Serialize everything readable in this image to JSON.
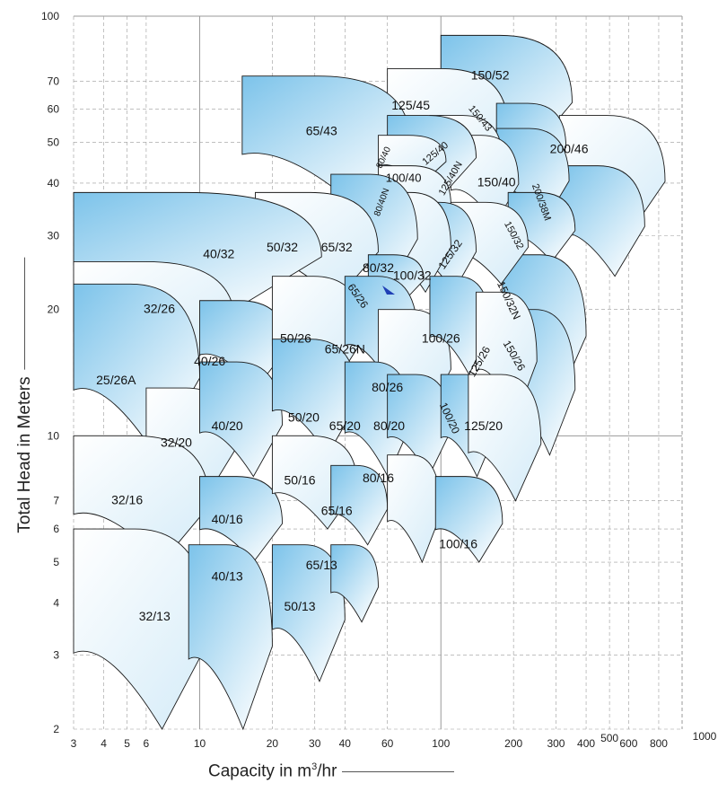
{
  "colors": {
    "fill_dark": "#7cc3ea",
    "fill_light": "#ffffff",
    "outline": "#1a1a1a",
    "grid": "#9a9a9a",
    "accent_arrow": "#1f3fb5"
  },
  "chart_data": {
    "type": "area",
    "xlabel_text": "Capacity in m",
    "xlabel_sup": "3",
    "xlabel_tail": "/hr",
    "ylabel": "Total Head in Meters",
    "x_scale": "log",
    "y_scale": "log",
    "xlim": [
      3,
      1000
    ],
    "ylim": [
      2,
      100
    ],
    "grid": true,
    "x_ticks": [
      3,
      4,
      5,
      6,
      10,
      20,
      30,
      40,
      60,
      100,
      200,
      300,
      400,
      500,
      600,
      800,
      1000
    ],
    "x_tick_labels": [
      "3",
      "4",
      "5",
      "6",
      "10",
      "20",
      "30",
      "40",
      "60",
      "100",
      "200",
      "300",
      "400",
      "500",
      "600",
      "800",
      "1000"
    ],
    "y_ticks": [
      2,
      3,
      4,
      5,
      6,
      7,
      10,
      20,
      30,
      40,
      50,
      60,
      70,
      100
    ],
    "y_tick_labels": [
      "2",
      "3",
      "4",
      "5",
      "6",
      "7",
      "10",
      "20",
      "30",
      "40",
      "50",
      "60",
      "70",
      "100"
    ],
    "pump_ranges": [
      {
        "model": "150/52",
        "q_min": 100,
        "q_max": 350,
        "h_min": 46,
        "h_max": 90,
        "shade": 0.9
      },
      {
        "model": "200/46",
        "q_min": 310,
        "q_max": 850,
        "h_min": 30,
        "h_max": 58,
        "shade": 0.2
      },
      {
        "model": "125/45",
        "q_min": 60,
        "q_max": 190,
        "h_min": 41,
        "h_max": 75,
        "shade": 0.15
      },
      {
        "model": "150/43",
        "q_min": 170,
        "q_max": 330,
        "h_min": 40,
        "h_max": 62,
        "shade": 0.6
      },
      {
        "model": "200/38M",
        "q_min": 310,
        "q_max": 700,
        "h_min": 24,
        "h_max": 44,
        "shade": 0.5
      },
      {
        "model": "150/40",
        "q_min": 170,
        "q_max": 340,
        "h_min": 32,
        "h_max": 54,
        "shade": 0.8
      },
      {
        "model": "65/43",
        "q_min": 15,
        "q_max": 75,
        "h_min": 36,
        "h_max": 72,
        "shade": 0.85
      },
      {
        "model": "125/40",
        "q_min": 90,
        "q_max": 180,
        "h_min": 37,
        "h_max": 58,
        "shade": 0.1
      },
      {
        "model": "125/40N",
        "q_min": 110,
        "q_max": 210,
        "h_min": 32,
        "h_max": 52,
        "shade": 0.15
      },
      {
        "model": "100/40",
        "q_min": 60,
        "q_max": 140,
        "h_min": 38,
        "h_max": 58,
        "shade": 0.7
      },
      {
        "model": "80/40",
        "q_min": 55,
        "q_max": 105,
        "h_min": 40,
        "h_max": 52,
        "shade": 0.2
      },
      {
        "model": "80/40N",
        "q_min": 55,
        "q_max": 110,
        "h_min": 30,
        "h_max": 44,
        "shade": 0.2
      },
      {
        "model": "150/32",
        "q_min": 190,
        "q_max": 360,
        "h_min": 26,
        "h_max": 38,
        "shade": 0.85
      },
      {
        "model": "150/32N",
        "q_min": 180,
        "q_max": 400,
        "h_min": 12,
        "h_max": 27,
        "shade": 0.9
      },
      {
        "model": "150/26",
        "q_min": 180,
        "q_max": 360,
        "h_min": 9,
        "h_max": 20,
        "shade": 0.6
      },
      {
        "model": "125/32",
        "q_min": 110,
        "q_max": 230,
        "h_min": 23,
        "h_max": 36,
        "shade": 0.15
      },
      {
        "model": "100/32",
        "q_min": 75,
        "q_max": 140,
        "h_min": 22,
        "h_max": 36,
        "shade": 0.8
      },
      {
        "model": "80/32",
        "q_min": 55,
        "q_max": 110,
        "h_min": 22,
        "h_max": 38,
        "shade": 0.1
      },
      {
        "model": "65/32",
        "q_min": 35,
        "q_max": 80,
        "h_min": 22,
        "h_max": 42,
        "shade": 0.85
      },
      {
        "model": "50/32",
        "q_min": 17,
        "q_max": 55,
        "h_min": 21,
        "h_max": 38,
        "shade": 0.15
      },
      {
        "model": "40/32",
        "q_min": 3,
        "q_max": 32,
        "h_min": 20,
        "h_max": 38,
        "shade": 0.85
      },
      {
        "model": "32/26",
        "q_min": 3,
        "q_max": 14,
        "h_min": 14,
        "h_max": 26,
        "shade": 0.1
      },
      {
        "model": "25/26A",
        "q_min": 3,
        "q_max": 10,
        "h_min": 9,
        "h_max": 23,
        "shade": 0.85
      },
      {
        "model": "40/26",
        "q_min": 10,
        "q_max": 23,
        "h_min": 13,
        "h_max": 21,
        "shade": 0.7
      },
      {
        "model": "50/26",
        "q_min": 20,
        "q_max": 48,
        "h_min": 13,
        "h_max": 24,
        "shade": 0.15
      },
      {
        "model": "65/26",
        "q_min": 50,
        "q_max": 85,
        "h_min": 21,
        "h_max": 27,
        "shade": 0.8
      },
      {
        "model": "65/26N",
        "q_min": 40,
        "q_max": 80,
        "h_min": 13,
        "h_max": 24,
        "shade": 0.8
      },
      {
        "model": "80/26",
        "q_min": 55,
        "q_max": 110,
        "h_min": 11,
        "h_max": 20,
        "shade": 0.15
      },
      {
        "model": "100/26",
        "q_min": 90,
        "q_max": 160,
        "h_min": 14,
        "h_max": 24,
        "shade": 0.8
      },
      {
        "model": "125/26",
        "q_min": 140,
        "q_max": 250,
        "h_min": 11,
        "h_max": 22,
        "shade": 0.15
      },
      {
        "model": "32/20",
        "q_min": 6,
        "q_max": 14,
        "h_min": 7,
        "h_max": 13,
        "shade": 0.1
      },
      {
        "model": "40/20",
        "q_min": 10,
        "q_max": 22,
        "h_min": 8,
        "h_max": 15,
        "shade": 0.8
      },
      {
        "model": "50/20",
        "q_min": 20,
        "q_max": 45,
        "h_min": 9,
        "h_max": 17,
        "shade": 0.7
      },
      {
        "model": "65/20",
        "q_min": 40,
        "q_max": 75,
        "h_min": 8,
        "h_max": 15,
        "shade": 0.8
      },
      {
        "model": "80/20",
        "q_min": 60,
        "q_max": 110,
        "h_min": 8,
        "h_max": 14,
        "shade": 0.8
      },
      {
        "model": "100/20",
        "q_min": 100,
        "q_max": 170,
        "h_min": 8,
        "h_max": 14,
        "shade": 0.9
      },
      {
        "model": "125/20",
        "q_min": 130,
        "q_max": 260,
        "h_min": 7,
        "h_max": 14,
        "shade": 0.15
      },
      {
        "model": "32/16",
        "q_min": 3,
        "q_max": 11,
        "h_min": 5,
        "h_max": 10,
        "shade": 0.1
      },
      {
        "model": "40/16",
        "q_min": 10,
        "q_max": 22,
        "h_min": 5,
        "h_max": 8,
        "shade": 0.8
      },
      {
        "model": "50/16",
        "q_min": 20,
        "q_max": 45,
        "h_min": 6,
        "h_max": 10,
        "shade": 0.15
      },
      {
        "model": "65/16",
        "q_min": 35,
        "q_max": 60,
        "h_min": 5.5,
        "h_max": 8.5,
        "shade": 0.8
      },
      {
        "model": "80/16",
        "q_min": 60,
        "q_max": 100,
        "h_min": 5,
        "h_max": 9,
        "shade": 0.15
      },
      {
        "model": "100/16",
        "q_min": 95,
        "q_max": 180,
        "h_min": 5,
        "h_max": 8,
        "shade": 0.8
      },
      {
        "model": "32/13",
        "q_min": 3,
        "q_max": 11,
        "h_min": 2,
        "h_max": 6,
        "shade": 0.1
      },
      {
        "model": "40/13",
        "q_min": 9,
        "q_max": 20,
        "h_min": 2,
        "h_max": 5.5,
        "shade": 0.8
      },
      {
        "model": "50/13",
        "q_min": 20,
        "q_max": 40,
        "h_min": 2.6,
        "h_max": 5.5,
        "shade": 0.7
      },
      {
        "model": "65/13",
        "q_min": 35,
        "q_max": 55,
        "h_min": 3.6,
        "h_max": 5.5,
        "shade": 0.8
      }
    ],
    "labels": [
      {
        "text": "150/52",
        "q": 160,
        "h": 72,
        "size": 14,
        "rotate": 0
      },
      {
        "text": "200/46",
        "q": 340,
        "h": 48,
        "size": 14,
        "rotate": 0
      },
      {
        "text": "125/45",
        "q": 75,
        "h": 61,
        "size": 14,
        "rotate": 0
      },
      {
        "text": "150/43",
        "q": 145,
        "h": 57,
        "size": 11,
        "rotate": 50
      },
      {
        "text": "65/43",
        "q": 32,
        "h": 53,
        "size": 14,
        "rotate": 0
      },
      {
        "text": "125/40",
        "q": 95,
        "h": 47,
        "size": 11,
        "rotate": -40
      },
      {
        "text": "80/40",
        "q": 58,
        "h": 46,
        "size": 10,
        "rotate": -65
      },
      {
        "text": "100/40",
        "q": 70,
        "h": 41,
        "size": 13,
        "rotate": 0
      },
      {
        "text": "125/40N",
        "q": 110,
        "h": 41,
        "size": 11,
        "rotate": -60
      },
      {
        "text": "150/40",
        "q": 170,
        "h": 40,
        "size": 14,
        "rotate": 0
      },
      {
        "text": "200/38M",
        "q": 260,
        "h": 36,
        "size": 11,
        "rotate": 70
      },
      {
        "text": "80/40N",
        "q": 57,
        "h": 36,
        "size": 10,
        "rotate": -70
      },
      {
        "text": "150/32",
        "q": 200,
        "h": 30,
        "size": 11,
        "rotate": 62
      },
      {
        "text": "125/32",
        "q": 110,
        "h": 27,
        "size": 12,
        "rotate": -55
      },
      {
        "text": "65/32",
        "q": 37,
        "h": 28,
        "size": 14,
        "rotate": 0
      },
      {
        "text": "50/32",
        "q": 22,
        "h": 28,
        "size": 14,
        "rotate": 0
      },
      {
        "text": "40/32",
        "q": 12,
        "h": 27,
        "size": 14,
        "rotate": 0
      },
      {
        "text": "80/32",
        "q": 55,
        "h": 25,
        "size": 14,
        "rotate": 0
      },
      {
        "text": "100/32",
        "q": 76,
        "h": 24,
        "size": 14,
        "rotate": 0
      },
      {
        "text": "150/32N",
        "q": 190,
        "h": 21,
        "size": 12,
        "rotate": 65
      },
      {
        "text": "65/26",
        "q": 45,
        "h": 21.5,
        "size": 12,
        "rotate": 55
      },
      {
        "text": "32/26",
        "q": 6.8,
        "h": 20,
        "size": 14,
        "rotate": 0
      },
      {
        "text": "50/26",
        "q": 25,
        "h": 17,
        "size": 14,
        "rotate": 0
      },
      {
        "text": "65/26N",
        "q": 40,
        "h": 16,
        "size": 14,
        "rotate": 0
      },
      {
        "text": "100/26",
        "q": 100,
        "h": 17,
        "size": 14,
        "rotate": 0
      },
      {
        "text": "125/26",
        "q": 145,
        "h": 15,
        "size": 12,
        "rotate": -60
      },
      {
        "text": "150/26",
        "q": 200,
        "h": 15.5,
        "size": 12,
        "rotate": 60
      },
      {
        "text": "40/26",
        "q": 11,
        "h": 15,
        "size": 14,
        "rotate": 0
      },
      {
        "text": "25/26A",
        "q": 4.5,
        "h": 13.5,
        "size": 14,
        "rotate": 0
      },
      {
        "text": "80/26",
        "q": 60,
        "h": 13,
        "size": 14,
        "rotate": 0
      },
      {
        "text": "100/20",
        "q": 108,
        "h": 11,
        "size": 12,
        "rotate": 65
      },
      {
        "text": "50/20",
        "q": 27,
        "h": 11,
        "size": 14,
        "rotate": 0
      },
      {
        "text": "125/20",
        "q": 150,
        "h": 10.5,
        "size": 14,
        "rotate": 0
      },
      {
        "text": "40/20",
        "q": 13,
        "h": 10.5,
        "size": 14,
        "rotate": 0
      },
      {
        "text": "65/20",
        "q": 40,
        "h": 10.5,
        "size": 14,
        "rotate": 0
      },
      {
        "text": "80/20",
        "q": 61,
        "h": 10.5,
        "size": 14,
        "rotate": 0
      },
      {
        "text": "32/20",
        "q": 8,
        "h": 9.6,
        "size": 14,
        "rotate": 0
      },
      {
        "text": "50/16",
        "q": 26,
        "h": 7.8,
        "size": 14,
        "rotate": 0
      },
      {
        "text": "80/16",
        "q": 55,
        "h": 7.9,
        "size": 14,
        "rotate": 0
      },
      {
        "text": "32/16",
        "q": 5,
        "h": 7,
        "size": 14,
        "rotate": 0
      },
      {
        "text": "65/16",
        "q": 37,
        "h": 6.6,
        "size": 14,
        "rotate": 0
      },
      {
        "text": "40/16",
        "q": 13,
        "h": 6.3,
        "size": 14,
        "rotate": 0
      },
      {
        "text": "100/16",
        "q": 118,
        "h": 5.5,
        "size": 14,
        "rotate": 0
      },
      {
        "text": "40/13",
        "q": 13,
        "h": 4.6,
        "size": 14,
        "rotate": 0
      },
      {
        "text": "65/13",
        "q": 32,
        "h": 4.9,
        "size": 14,
        "rotate": 0
      },
      {
        "text": "50/13",
        "q": 26,
        "h": 3.9,
        "size": 14,
        "rotate": 0
      },
      {
        "text": "32/13",
        "q": 6.5,
        "h": 3.7,
        "size": 14,
        "rotate": 0
      }
    ]
  }
}
